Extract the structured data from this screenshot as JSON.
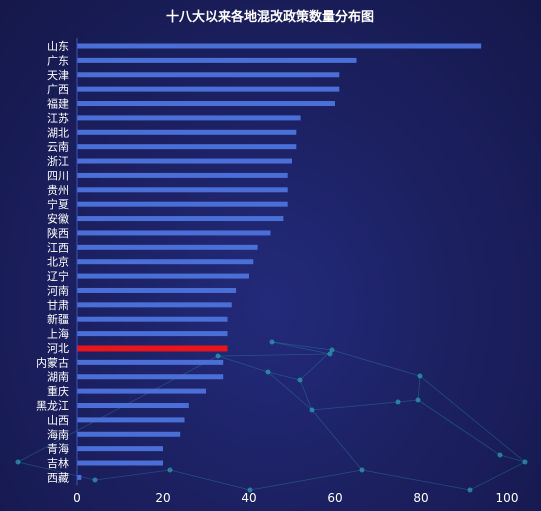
{
  "chart_data": {
    "type": "bar",
    "orientation": "horizontal",
    "title": "十八大以来各地混改政策数量分布图",
    "categories": [
      "山东",
      "广东",
      "天津",
      "广西",
      "福建",
      "江苏",
      "湖北",
      "云南",
      "浙江",
      "四川",
      "贵州",
      "宁夏",
      "安徽",
      "陕西",
      "江西",
      "北京",
      "辽宁",
      "河南",
      "甘肃",
      "新疆",
      "上海",
      "河北",
      "内蒙古",
      "湖南",
      "重庆",
      "黑龙江",
      "山西",
      "海南",
      "青海",
      "吉林",
      "西藏"
    ],
    "values": [
      94,
      65,
      61,
      61,
      60,
      52,
      51,
      51,
      50,
      49,
      49,
      49,
      48,
      45,
      42,
      41,
      40,
      37,
      36,
      35,
      35,
      35,
      34,
      34,
      30,
      26,
      25,
      24,
      20,
      20,
      1
    ],
    "highlight_category": "河北",
    "bar_color": "#4a6fd6",
    "highlight_color": "#e8161c",
    "xlim": [
      0,
      100
    ],
    "xticks": [
      0,
      20,
      40,
      60,
      80,
      100
    ],
    "grid": false,
    "xlabel": "",
    "ylabel": ""
  },
  "colors": {
    "background": "#1b1f5e",
    "text": "#ffffff",
    "network_lines": "#2fa3b8"
  }
}
